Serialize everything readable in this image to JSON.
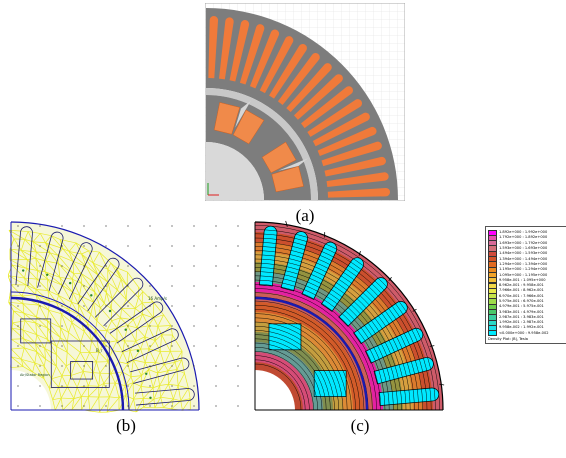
{
  "captions": {
    "a": "(a)",
    "b": "(b)",
    "c": "(c)"
  },
  "colors": {
    "stator": "#7d7d7d",
    "rotor": "#7d7d7d",
    "slot": "#f07a3a",
    "magnet": "#f08a4a",
    "airgap": "#c8c8c8",
    "shaft": "#d9d9d9",
    "mesh": "#e8ea2a",
    "mesh_bg": "#dcec78",
    "boundary": "#1a1ab0",
    "flux_lines": "#000000",
    "high_field": "#00e8ff"
  },
  "mesh_labels": {
    "current_slot": "16 Amp/s",
    "magnet": "B_r",
    "air_label": "Air/Stator Region"
  },
  "legend": {
    "rows": [
      {
        "text": "1.892e+000 : 1.992e+000",
        "color": "#ff00ff"
      },
      {
        "text": "1.792e+000 : 1.892e+000",
        "color": "#e64fb0"
      },
      {
        "text": "1.693e+000 : 1.792e+000",
        "color": "#d86a98"
      },
      {
        "text": "1.593e+000 : 1.693e+000",
        "color": "#d4707a"
      },
      {
        "text": "1.494e+000 : 1.593e+000",
        "color": "#cf4a3a"
      },
      {
        "text": "1.394e+000 : 1.494e+000",
        "color": "#d4532a"
      },
      {
        "text": "1.294e+000 : 1.394e+000",
        "color": "#e06a22"
      },
      {
        "text": "1.195e+000 : 1.294e+000",
        "color": "#eb8a20"
      },
      {
        "text": "1.095e+000 : 1.195e+000",
        "color": "#f1a32a"
      },
      {
        "text": "9.958e-001 : 1.095e+000",
        "color": "#f2bf3a"
      },
      {
        "text": "8.962e-001 : 9.958e-001",
        "color": "#f2d84a"
      },
      {
        "text": "7.966e-001 : 8.962e-001",
        "color": "#e8e84a"
      },
      {
        "text": "6.970e-001 : 7.966e-001",
        "color": "#c6e44a"
      },
      {
        "text": "5.975e-001 : 6.970e-001",
        "color": "#9fdc4a"
      },
      {
        "text": "4.979e-001 : 5.975e-001",
        "color": "#6fd04a"
      },
      {
        "text": "3.983e-001 : 4.979e-001",
        "color": "#4ac86a"
      },
      {
        "text": "2.987e-001 : 3.983e-001",
        "color": "#3ad0a0"
      },
      {
        "text": "1.992e-001 : 2.987e-001",
        "color": "#2ad8c8"
      },
      {
        "text": "9.958e-002 : 1.992e-001",
        "color": "#1ae0e8"
      },
      {
        "text": "<0.000e+000 : 9.958e-002",
        "color": "#00eaff"
      }
    ],
    "footer": "Density Plot: |B|, Tesla"
  }
}
